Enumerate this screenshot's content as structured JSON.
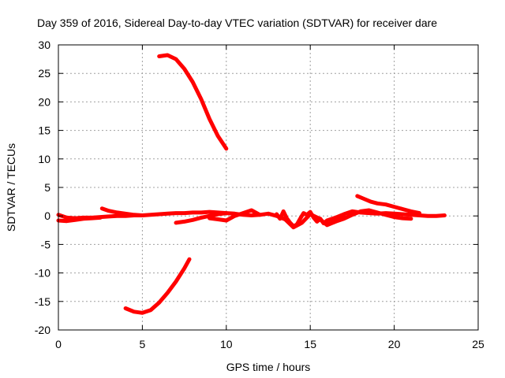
{
  "chart_data": {
    "type": "line",
    "title": "Day 359 of 2016, Sidereal Day-to-day VTEC variation (SDTVAR) for receiver dare",
    "xlabel": "GPS time / hours",
    "ylabel": "SDTVAR / TECUs",
    "xlim": [
      0,
      25
    ],
    "ylim": [
      -20,
      30
    ],
    "xticks": [
      0,
      5,
      10,
      15,
      20,
      25
    ],
    "yticks": [
      -20,
      -15,
      -10,
      -5,
      0,
      5,
      10,
      15,
      20,
      25,
      30
    ],
    "xtick_labels": [
      "0",
      "5",
      "10",
      "15",
      "20",
      "25"
    ],
    "ytick_labels": [
      "-20",
      "-15",
      "-10",
      "-5",
      "0",
      "5",
      "10",
      "15",
      "20",
      "25",
      "30"
    ],
    "grid": true,
    "color": "#ff0000",
    "series": [
      {
        "name": "arc-positive-high",
        "x": [
          6.0,
          6.5,
          7.0,
          7.5,
          8.0,
          8.5,
          9.0,
          9.5,
          10.0
        ],
        "y": [
          28.0,
          28.2,
          27.5,
          25.8,
          23.5,
          20.5,
          17.0,
          14.0,
          11.8
        ]
      },
      {
        "name": "arc-negative-low",
        "x": [
          4.0,
          4.5,
          5.0,
          5.5,
          6.0,
          6.5,
          7.0,
          7.5,
          7.8
        ],
        "y": [
          -16.2,
          -16.8,
          -17.0,
          -16.5,
          -15.2,
          -13.5,
          -11.5,
          -9.2,
          -7.6
        ]
      },
      {
        "name": "band-early",
        "x": [
          0.0,
          0.5,
          1.0,
          1.5,
          2.0,
          2.5,
          3.0,
          3.5,
          4.0,
          4.5,
          5.0,
          5.5,
          6.0,
          6.5,
          7.0,
          7.5,
          8.0,
          8.5,
          9.0,
          9.5,
          10.0
        ],
        "y": [
          0.2,
          -0.3,
          -0.4,
          -0.3,
          -0.3,
          -0.2,
          -0.1,
          0.0,
          0.0,
          0.1,
          0.1,
          0.2,
          0.3,
          0.4,
          0.5,
          0.5,
          0.6,
          0.6,
          0.7,
          0.6,
          0.5
        ]
      },
      {
        "name": "band-start",
        "x": [
          0.0,
          0.5,
          1.0,
          1.5,
          2.0,
          2.5
        ],
        "y": [
          -0.8,
          -0.9,
          -0.7,
          -0.5,
          -0.4,
          -0.3
        ]
      },
      {
        "name": "band-hump",
        "x": [
          2.6,
          3.0,
          3.5,
          4.0,
          4.5,
          5.0
        ],
        "y": [
          1.3,
          0.9,
          0.6,
          0.4,
          0.2,
          0.1
        ]
      },
      {
        "name": "band-mid",
        "x": [
          7.0,
          7.5,
          8.0,
          8.5,
          9.0,
          9.5,
          10.0,
          10.5,
          11.0,
          11.5,
          12.0,
          12.5,
          13.0,
          13.5,
          14.0,
          14.5,
          15.0,
          15.5,
          16.0,
          16.5,
          17.0
        ],
        "y": [
          -1.2,
          -1.0,
          -0.7,
          -0.3,
          0.0,
          0.3,
          0.5,
          0.4,
          0.2,
          0.1,
          0.2,
          0.4,
          0.0,
          -0.6,
          -2.0,
          -1.2,
          0.3,
          -0.4,
          -1.6,
          -1.0,
          0.2
        ]
      },
      {
        "name": "band-mid-low",
        "x": [
          9.0,
          9.5,
          10.0,
          10.5,
          11.0,
          11.5,
          12.0
        ],
        "y": [
          -0.4,
          -0.6,
          -0.8,
          0.0,
          0.5,
          1.0,
          0.2
        ]
      },
      {
        "name": "band-late-wiggle",
        "x": [
          13.0,
          13.2,
          13.4,
          13.6,
          13.8,
          14.0,
          14.2,
          14.4,
          14.6,
          14.8,
          15.0,
          15.2,
          15.4,
          15.6,
          15.8,
          16.0
        ],
        "y": [
          0.3,
          -0.5,
          0.8,
          -0.4,
          -1.2,
          -1.8,
          -1.5,
          -0.5,
          0.5,
          0.2,
          0.7,
          -0.3,
          -1.0,
          -0.5,
          -1.3,
          -0.8
        ]
      },
      {
        "name": "band-late",
        "x": [
          16.0,
          16.5,
          17.0,
          17.5,
          18.0,
          18.5,
          19.0,
          19.5,
          20.0,
          20.5,
          21.0,
          21.5,
          22.0,
          22.5,
          23.0
        ],
        "y": [
          -0.8,
          -0.3,
          0.3,
          0.8,
          0.6,
          0.5,
          0.4,
          0.5,
          0.4,
          0.3,
          0.2,
          0.1,
          0.0,
          0.0,
          0.1
        ]
      },
      {
        "name": "band-late-2",
        "x": [
          16.0,
          16.5,
          17.0,
          17.5,
          18.0,
          18.5,
          19.0,
          19.5,
          20.0,
          20.5,
          21.0
        ],
        "y": [
          -1.5,
          -1.0,
          -0.5,
          0.2,
          0.8,
          1.0,
          0.6,
          0.2,
          -0.2,
          -0.4,
          -0.5
        ]
      },
      {
        "name": "late-arc-high",
        "x": [
          17.8,
          18.2,
          18.6,
          19.0,
          19.5,
          20.0,
          20.5,
          21.0,
          21.5
        ],
        "y": [
          3.5,
          3.0,
          2.5,
          2.2,
          2.0,
          1.6,
          1.2,
          0.8,
          0.5
        ]
      }
    ]
  }
}
